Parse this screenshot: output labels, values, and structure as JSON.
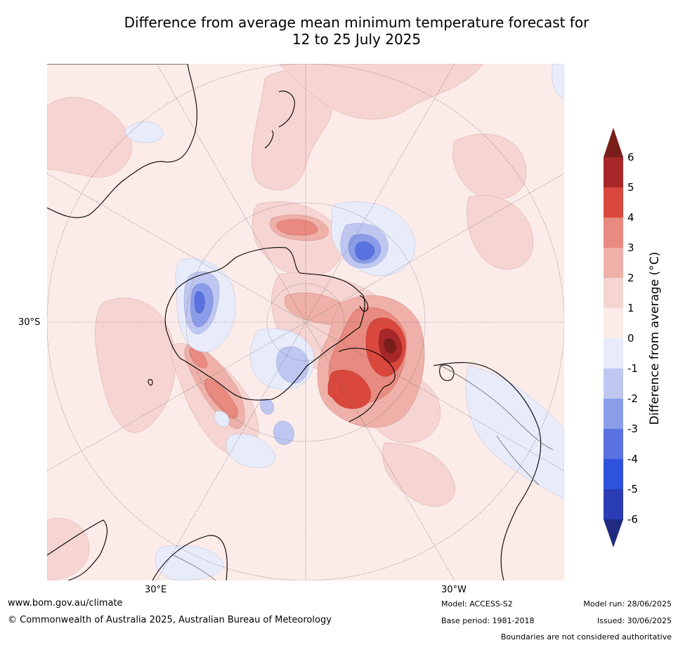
{
  "title": {
    "line1": "Difference from average mean minimum temperature forecast for",
    "line2": "12 to 25 July 2025"
  },
  "map": {
    "projection": "south-polar-stereographic",
    "lat_label": "30°S",
    "lon_labels": {
      "left": "30°E",
      "right": "30°W"
    },
    "land_outline_color": "#000000",
    "boundary_color": "#808080"
  },
  "colorbar": {
    "label": "Difference from average (°C)",
    "ticks": [
      "6",
      "5",
      "4",
      "3",
      "2",
      "1",
      "0",
      "-1",
      "-2",
      "-3",
      "-4",
      "-5",
      "-6"
    ],
    "bins": [
      {
        "range": [
          5,
          6
        ],
        "color": "#a8282a"
      },
      {
        "range": [
          4,
          5
        ],
        "color": "#d9473d"
      },
      {
        "range": [
          3,
          4
        ],
        "color": "#e88a7f"
      },
      {
        "range": [
          2,
          3
        ],
        "color": "#eeb0a8"
      },
      {
        "range": [
          1,
          2
        ],
        "color": "#f5d4d1"
      },
      {
        "range": [
          0,
          1
        ],
        "color": "#fbebe9"
      },
      {
        "range": [
          -1,
          0
        ],
        "color": "#e8ebfa"
      },
      {
        "range": [
          -2,
          -1
        ],
        "color": "#bfc7f1"
      },
      {
        "range": [
          -3,
          -2
        ],
        "color": "#8b9ce8"
      },
      {
        "range": [
          -4,
          -3
        ],
        "color": "#5a72e0"
      },
      {
        "range": [
          -5,
          -4
        ],
        "color": "#2f52dc"
      },
      {
        "range": [
          -6,
          -5
        ],
        "color": "#2a3db3"
      }
    ],
    "extend_high_color": "#7a1e1a",
    "extend_low_color": "#1f2a80"
  },
  "footer": {
    "url": "www.bom.gov.au/climate",
    "copyright": "© Commonwealth of Australia 2025, Australian Bureau of Meteorology",
    "model": "Model: ACCESS-S2",
    "base_period": "Base period: 1981-2018",
    "model_run": "Model run: 28/06/2025",
    "issued": "Issued: 30/06/2025",
    "disclaimer": "Boundaries are not considered authoritative"
  }
}
